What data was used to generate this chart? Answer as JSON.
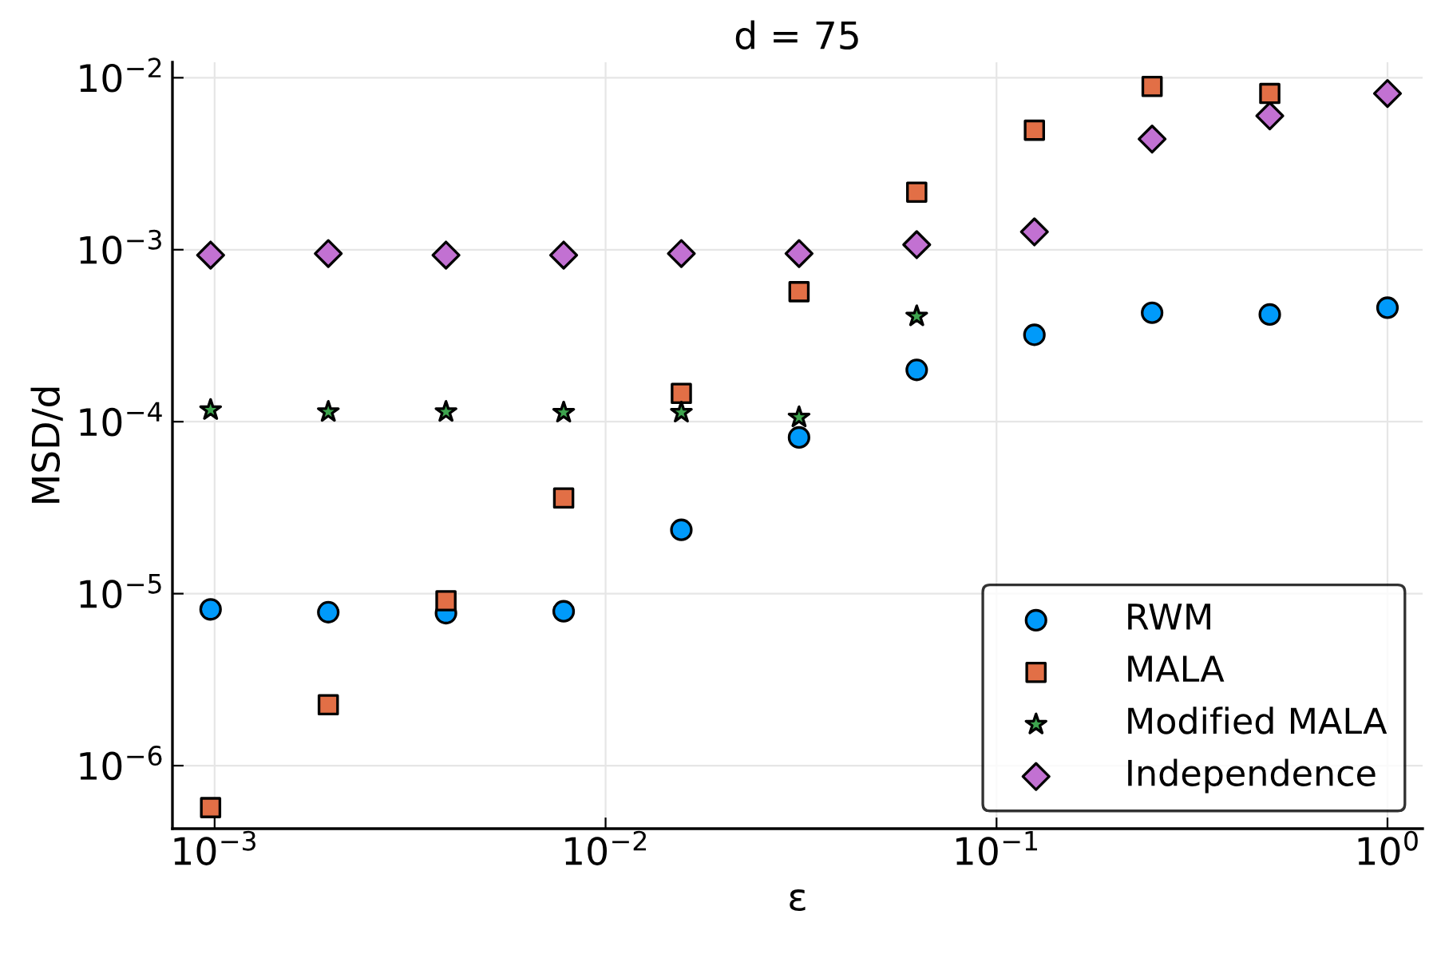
{
  "chart_data": {
    "type": "scatter",
    "title": "d = 75",
    "xlabel": "ε",
    "ylabel": "MSD/d",
    "log": "xy",
    "grid": true,
    "legend": "bottom right",
    "x": [
      0.0009765625,
      0.001953125,
      0.00390625,
      0.0078125,
      0.015625,
      0.03125,
      0.0625,
      0.125,
      0.25,
      0.5,
      1
    ],
    "xlim": [
      0.00078,
      1.23
    ],
    "ylim": [
      4.3e-07,
      0.0123
    ],
    "xticks": [
      {
        "value": 0.001,
        "label": "10$^{−3}$"
      },
      {
        "value": 0.01,
        "label": "10$^{−2}$"
      },
      {
        "value": 0.1,
        "label": "10$^{−1}$"
      },
      {
        "value": 1,
        "label": "10$^{0}$"
      }
    ],
    "yticks": [
      {
        "value": 1e-06,
        "label": "10$^{−6}$"
      },
      {
        "value": 1e-05,
        "label": "10$^{−5}$"
      },
      {
        "value": 0.0001,
        "label": "10$^{−4}$"
      },
      {
        "value": 0.001,
        "label": "10$^{−3}$"
      },
      {
        "value": 0.01,
        "label": "10$^{−2}$"
      }
    ],
    "series": [
      {
        "name": "RWM",
        "color": "#009afa",
        "marker": "circle",
        "values": [
          8.1e-06,
          7.8e-06,
          7.7e-06,
          7.9e-06,
          2.35e-05,
          8.1e-05,
          0.0002,
          0.00032,
          0.00043,
          0.00042,
          0.00046
        ]
      },
      {
        "name": "MALA",
        "color": "#e26f46",
        "marker": "square",
        "values": [
          5.7e-07,
          2.26e-06,
          9.1e-06,
          3.6e-05,
          0.000146,
          0.00057,
          0.00216,
          0.00495,
          0.0089,
          0.0081,
          null
        ]
      },
      {
        "name": "Modified MALA",
        "color": "#3ea44e",
        "marker": "star",
        "values": [
          0.000117,
          0.000114,
          0.000114,
          0.000113,
          0.000113,
          0.000106,
          0.00041,
          null,
          null,
          null,
          null
        ]
      },
      {
        "name": "Independence",
        "color": "#c271d2",
        "marker": "diamond",
        "values": [
          0.00093,
          0.00095,
          0.00093,
          0.00093,
          0.00095,
          0.00095,
          0.00107,
          0.00127,
          0.0044,
          0.006,
          0.0081
        ]
      }
    ]
  }
}
